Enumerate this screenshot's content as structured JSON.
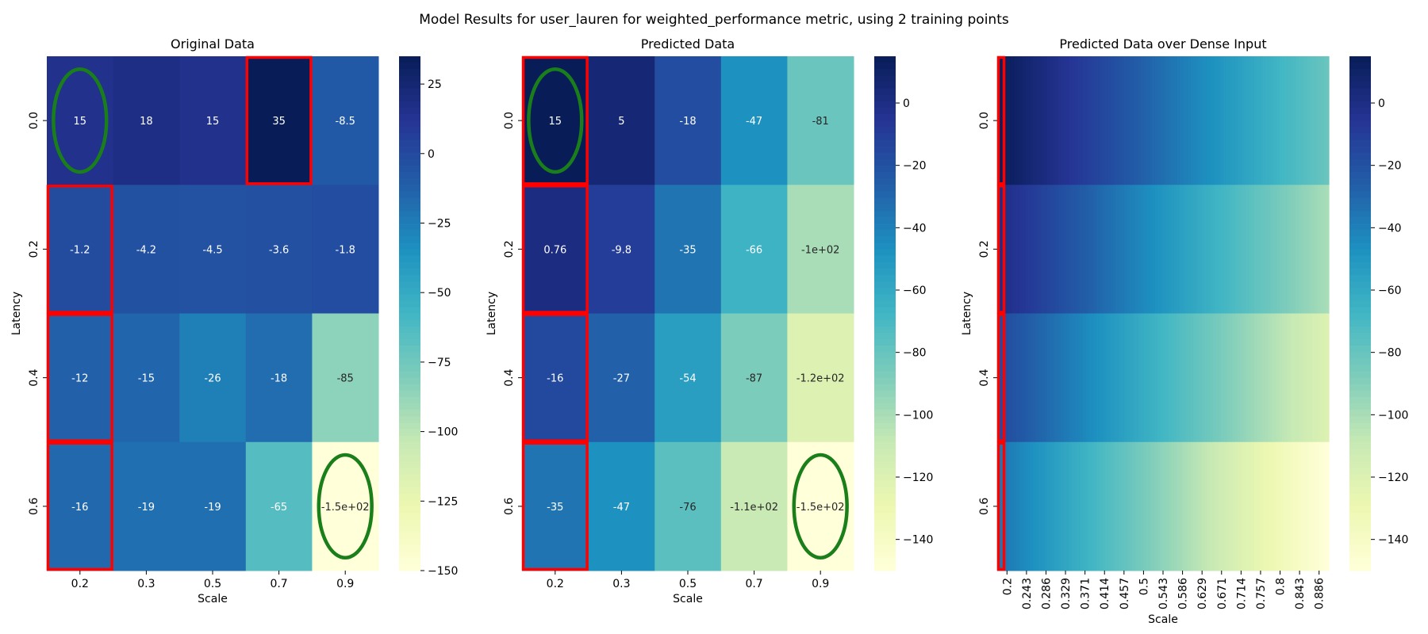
{
  "suptitle": "Model Results for user_lauren for weighted_performance metric, using 2 training points",
  "colors": {
    "cmap": "YlGnBu",
    "train_box": "#ff0000",
    "circle": "#1a7f1a",
    "text_light": "#ffffff",
    "text_dark": "#262626"
  },
  "chart_data": [
    {
      "type": "heatmap",
      "title": "Original Data",
      "xlabel": "Scale",
      "ylabel": "Latency",
      "x_ticks": [
        "0.2",
        "0.3",
        "0.5",
        "0.7",
        "0.9"
      ],
      "y_ticks": [
        "0.0",
        "0.2",
        "0.4",
        "0.6"
      ],
      "values": [
        [
          15,
          18,
          15,
          35,
          -8.5
        ],
        [
          -1.2,
          -4.2,
          -4.5,
          -3.6,
          -1.8
        ],
        [
          -12,
          -15,
          -26,
          -18,
          -85
        ],
        [
          -16,
          -19,
          -19,
          -65,
          -150
        ]
      ],
      "labels": [
        [
          "15",
          "18",
          "15",
          "35",
          "-8.5"
        ],
        [
          "-1.2",
          "-4.2",
          "-4.5",
          "-3.6",
          "-1.8"
        ],
        [
          "-12",
          "-15",
          "-26",
          "-18",
          "-85"
        ],
        [
          "-16",
          "-19",
          "-19",
          "-65",
          "-1.5e+02"
        ]
      ],
      "vmin": -150,
      "vmax": 35,
      "colorbar_ticks": [
        "25",
        "0",
        "−25",
        "−50",
        "−75",
        "−100",
        "−125",
        "−150"
      ],
      "colorbar_tick_values": [
        25,
        0,
        -25,
        -50,
        -75,
        -100,
        -125,
        -150
      ],
      "highlight_boxes": [
        [
          0,
          3
        ],
        [
          1,
          0
        ],
        [
          2,
          0
        ],
        [
          3,
          0
        ]
      ],
      "circles": [
        [
          0,
          0
        ],
        [
          3,
          4
        ]
      ]
    },
    {
      "type": "heatmap",
      "title": "Predicted Data",
      "xlabel": "Scale",
      "ylabel": "Latency",
      "x_ticks": [
        "0.2",
        "0.3",
        "0.5",
        "0.7",
        "0.9"
      ],
      "y_ticks": [
        "0.0",
        "0.2",
        "0.4",
        "0.6"
      ],
      "values": [
        [
          15,
          5,
          -18,
          -47,
          -81
        ],
        [
          0.76,
          -9.8,
          -35,
          -66,
          -100
        ],
        [
          -16,
          -27,
          -54,
          -87,
          -120
        ],
        [
          -35,
          -47,
          -76,
          -110,
          -150
        ]
      ],
      "labels": [
        [
          "15",
          "5",
          "-18",
          "-47",
          "-81"
        ],
        [
          "0.76",
          "-9.8",
          "-35",
          "-66",
          "-1e+02"
        ],
        [
          "-16",
          "-27",
          "-54",
          "-87",
          "-1.2e+02"
        ],
        [
          "-35",
          "-47",
          "-76",
          "-1.1e+02",
          "-1.5e+02"
        ]
      ],
      "vmin": -150,
      "vmax": 15,
      "colorbar_ticks": [
        "0",
        "−20",
        "−40",
        "−60",
        "−80",
        "−100",
        "−120",
        "−140"
      ],
      "colorbar_tick_values": [
        0,
        -20,
        -40,
        -60,
        -80,
        -100,
        -120,
        -140
      ],
      "highlight_boxes": [
        [
          0,
          0
        ],
        [
          1,
          0
        ],
        [
          2,
          0
        ],
        [
          3,
          0
        ]
      ],
      "circles": [
        [
          0,
          0
        ],
        [
          3,
          4
        ]
      ]
    },
    {
      "type": "heatmap",
      "title": "Predicted Data over Dense Input",
      "xlabel": "Scale",
      "ylabel": "Latency",
      "x_ticks": [
        "0.2",
        "0.243",
        "0.286",
        "0.329",
        "0.371",
        "0.414",
        "0.457",
        "0.5",
        "0.543",
        "0.586",
        "0.629",
        "0.671",
        "0.714",
        "0.757",
        "0.8",
        "0.843",
        "0.886"
      ],
      "y_ticks": [
        "0.0",
        "0.2",
        "0.4",
        "0.6"
      ],
      "row_start": [
        15,
        0.76,
        -16,
        -35
      ],
      "row_end": [
        -81,
        -100,
        -120,
        -150
      ],
      "vmin": -150,
      "vmax": 15,
      "colorbar_ticks": [
        "0",
        "−20",
        "−40",
        "−60",
        "−80",
        "−100",
        "−120",
        "−140"
      ],
      "colorbar_tick_values": [
        0,
        -20,
        -40,
        -60,
        -80,
        -100,
        -120,
        -140
      ],
      "highlight_rows": [
        0,
        1,
        2,
        3
      ]
    }
  ]
}
